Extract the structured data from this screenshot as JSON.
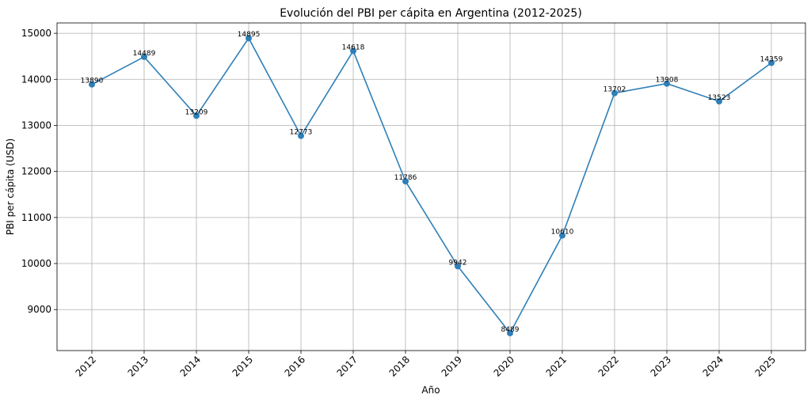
{
  "chart_data": {
    "type": "line",
    "title": "Evolución del PBI per cápita en Argentina (2012-2025)",
    "xlabel": "Año",
    "ylabel": "PBI per cápita (USD)",
    "x": [
      "2012",
      "2013",
      "2014",
      "2015",
      "2016",
      "2017",
      "2018",
      "2019",
      "2020",
      "2021",
      "2022",
      "2023",
      "2024",
      "2025"
    ],
    "series": [
      {
        "values": [
          13890,
          14489,
          13209,
          14895,
          12773,
          14618,
          11786,
          9942,
          8489,
          10610,
          13702,
          13908,
          13523,
          14359
        ],
        "labels": [
          "13890",
          "14489",
          "13209",
          "14895",
          "12773",
          "14618",
          "11786",
          "9942",
          "8489",
          "10610",
          "13702",
          "13908",
          "13523",
          "14359"
        ],
        "color": "#2e7fb8"
      }
    ],
    "yticks": [
      9000,
      10000,
      11000,
      12000,
      13000,
      14000,
      15000
    ],
    "ylim": [
      8110,
      15225
    ],
    "grid": true,
    "marker": "circle"
  }
}
